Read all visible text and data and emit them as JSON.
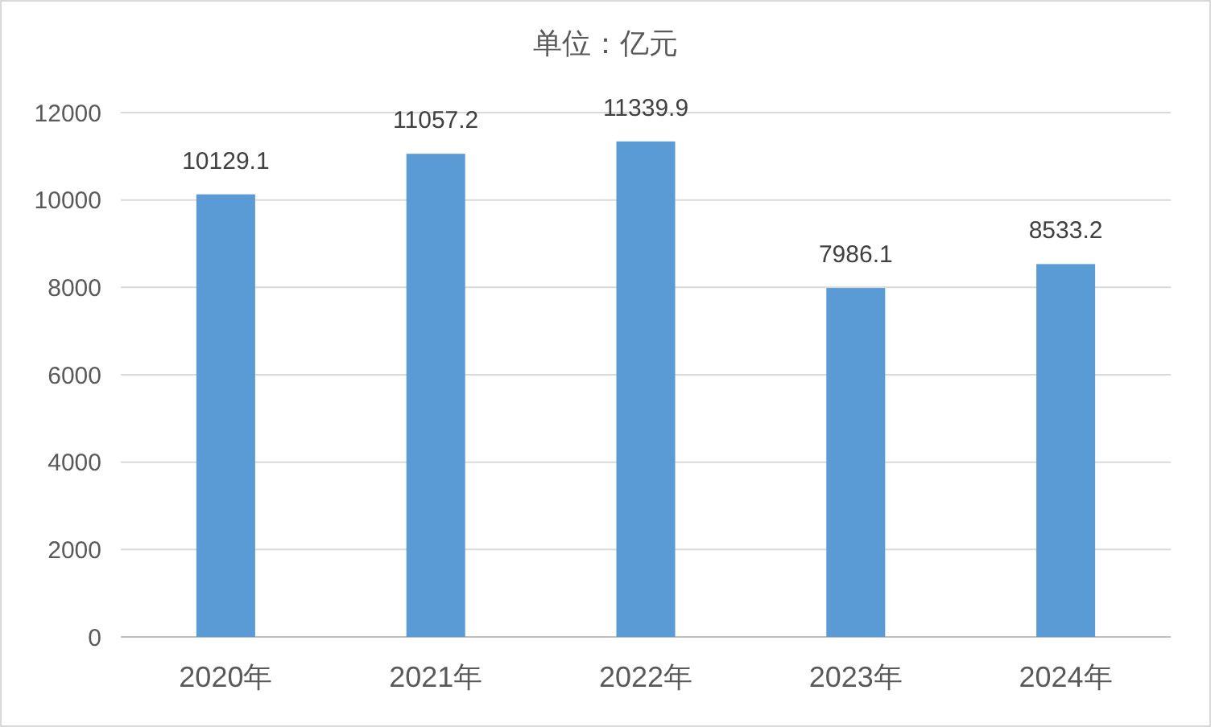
{
  "chart_data": {
    "type": "bar",
    "title": "单位：亿元",
    "categories": [
      "2020年",
      "2021年",
      "2022年",
      "2023年",
      "2024年"
    ],
    "values": [
      10129.1,
      11057.2,
      11339.9,
      7986.1,
      8533.2
    ],
    "color": "#5b9bd5",
    "ylim": [
      0,
      12000
    ],
    "yticks": [
      0,
      2000,
      4000,
      6000,
      8000,
      10000,
      12000
    ],
    "grid": "y",
    "data_labels": true
  }
}
